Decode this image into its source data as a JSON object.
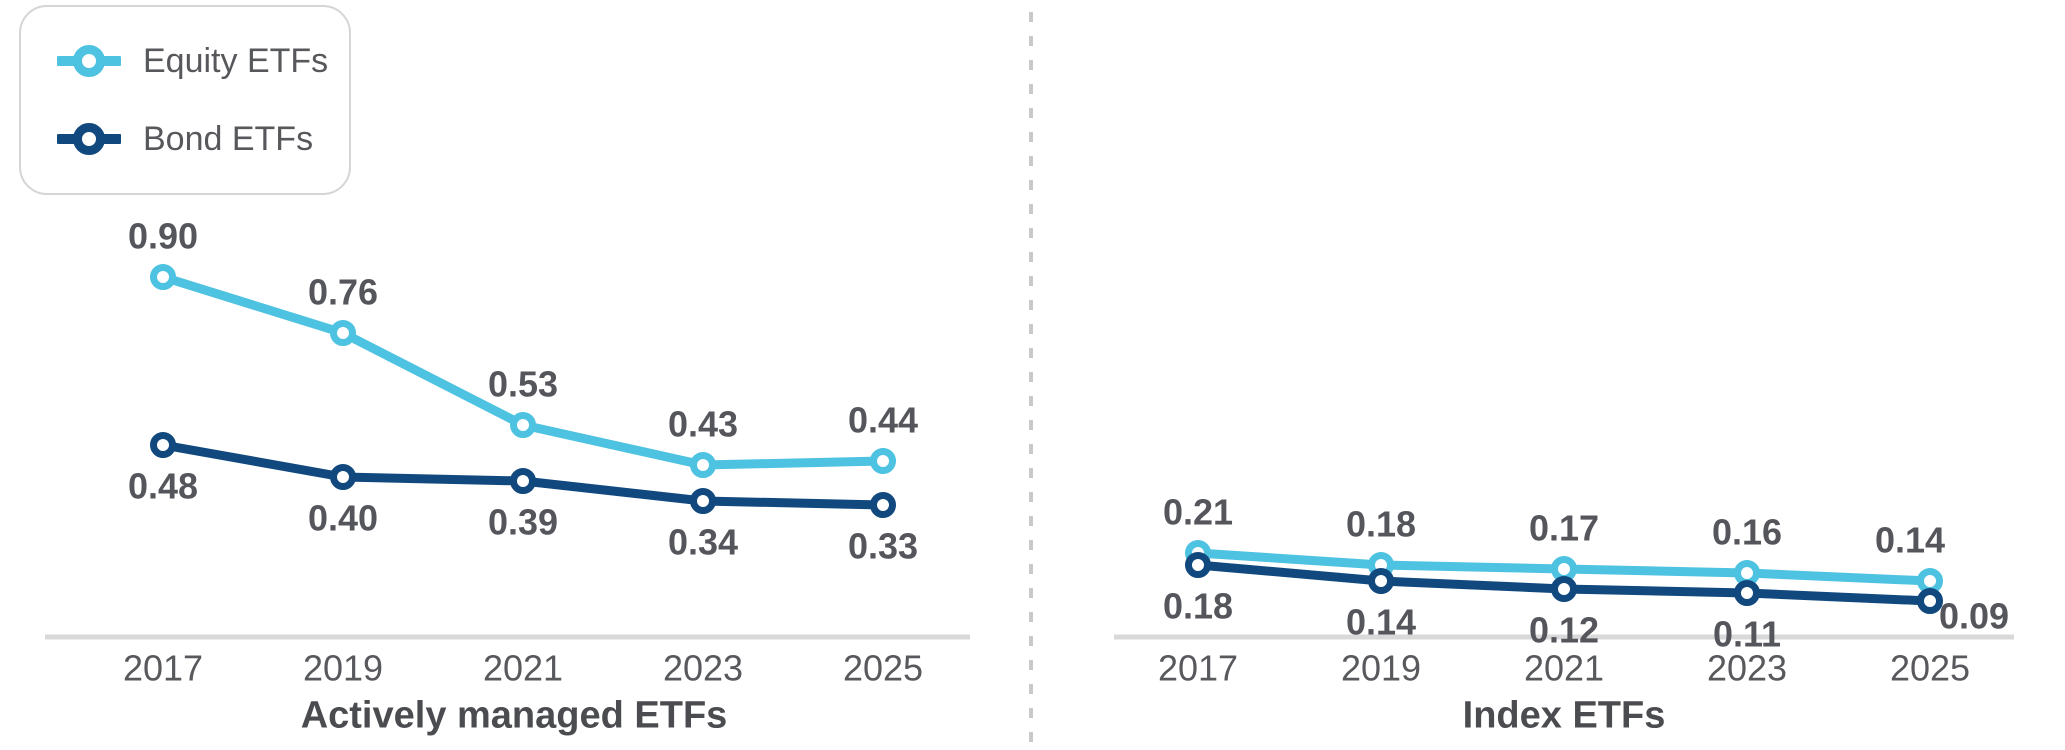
{
  "legend": {
    "items": [
      {
        "label": "Equity ETFs",
        "color": "#4dc2e1",
        "marker": "ring-on-line-icon"
      },
      {
        "label": "Bond ETFs",
        "color": "#11497e",
        "marker": "ring-on-line-icon"
      }
    ],
    "position": "top-left"
  },
  "colors": {
    "equity_series": "#4dc2e1",
    "bond_series": "#11497e",
    "data_label": "#55565b",
    "tick_label": "#58595c",
    "chart_title": "#4b4c50",
    "axis_line": "#d9d9d9",
    "divider": "#c9c9c9",
    "background": "#ffffff"
  },
  "chart_data": [
    {
      "type": "line",
      "title": "Actively managed ETFs",
      "categories": [
        "2017",
        "2019",
        "2021",
        "2023",
        "2025"
      ],
      "series": [
        {
          "name": "Equity ETFs",
          "color": "#4dc2e1",
          "values": [
            0.9,
            0.76,
            0.53,
            0.43,
            0.44
          ],
          "label_position": "above"
        },
        {
          "name": "Bond ETFs",
          "color": "#11497e",
          "values": [
            0.48,
            0.4,
            0.39,
            0.34,
            0.33
          ],
          "label_position": "below"
        }
      ],
      "ylim": [
        0,
        1.0
      ],
      "grid": false,
      "y_axis_visible": false,
      "data_labels": true,
      "label_format": "0.00",
      "legend_position": "top-left"
    },
    {
      "type": "line",
      "title": "Index ETFs",
      "categories": [
        "2017",
        "2019",
        "2021",
        "2023",
        "2025"
      ],
      "series": [
        {
          "name": "Equity ETFs",
          "color": "#4dc2e1",
          "values": [
            0.21,
            0.18,
            0.17,
            0.16,
            0.14
          ],
          "label_position": "above",
          "label_overrides": {
            "4": {
              "dx": -20
            }
          }
        },
        {
          "name": "Bond ETFs",
          "color": "#11497e",
          "values": [
            0.18,
            0.14,
            0.12,
            0.11,
            0.09
          ],
          "label_position": "below",
          "label_overrides": {
            "4": {
              "dx": 44,
              "dy": 15
            }
          }
        }
      ],
      "ylim": [
        0,
        1.0
      ],
      "grid": false,
      "y_axis_visible": false,
      "data_labels": true,
      "label_format": "0.00",
      "legend_position": "none"
    }
  ]
}
